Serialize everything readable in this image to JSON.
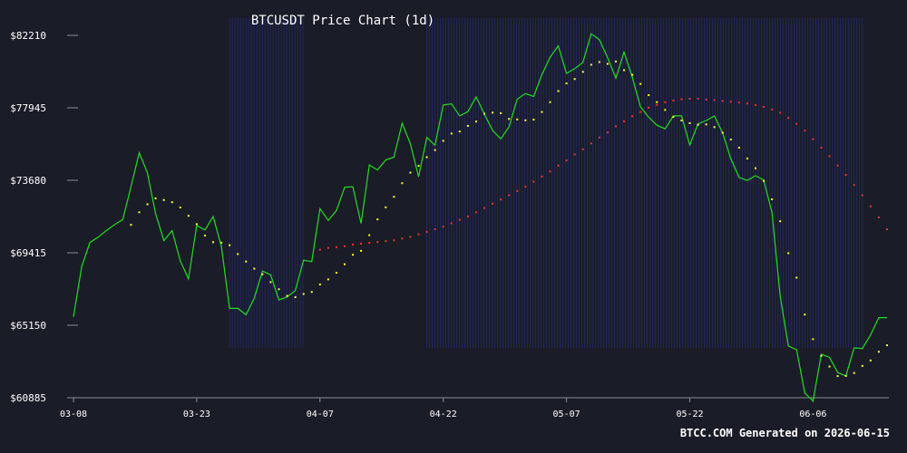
{
  "colors": {
    "background": "#1a1d27",
    "axis": "#8a8d96",
    "text": "#ffffff",
    "price_line": "#22dd22",
    "ma_short": "#ffff33",
    "ma_long": "#ee3333",
    "band": "#2a2f8a"
  },
  "chart_data": {
    "type": "line",
    "title": "BTCUSDT Price Chart (1d)",
    "footer": "BTCC.COM Generated on 2026-06-15",
    "xlabel": "",
    "ylabel": "",
    "x_start": "2026-03-08",
    "x_end": "2026-06-15",
    "ylim": [
      60885,
      82210
    ],
    "y_ticks": [
      "$82210",
      "$77945",
      "$73680",
      "$69415",
      "$65150",
      "$60885"
    ],
    "x_ticks": [
      {
        "label": "03-08",
        "day": 0
      },
      {
        "label": "03-23",
        "day": 15
      },
      {
        "label": "04-07",
        "day": 30
      },
      {
        "label": "04-22",
        "day": 45
      },
      {
        "label": "05-07",
        "day": 60
      },
      {
        "label": "05-22",
        "day": 75
      },
      {
        "label": "06-06",
        "day": 90
      }
    ],
    "band_ranges": [
      [
        19,
        28
      ],
      [
        43,
        96
      ]
    ],
    "series": [
      {
        "key": "price",
        "style": "line",
        "points": [
          [
            0,
            65650
          ],
          [
            1,
            68600
          ],
          [
            2,
            70020
          ],
          [
            3,
            70330
          ],
          [
            4,
            70720
          ],
          [
            5,
            71070
          ],
          [
            6,
            71370
          ],
          [
            7,
            73300
          ],
          [
            8,
            75300
          ],
          [
            9,
            74120
          ],
          [
            10,
            71700
          ],
          [
            11,
            70130
          ],
          [
            12,
            70720
          ],
          [
            13,
            68930
          ],
          [
            14,
            67880
          ],
          [
            15,
            71020
          ],
          [
            16,
            70760
          ],
          [
            17,
            71550
          ],
          [
            18,
            69790
          ],
          [
            19,
            66140
          ],
          [
            20,
            66140
          ],
          [
            21,
            65770
          ],
          [
            22,
            66740
          ],
          [
            23,
            68340
          ],
          [
            24,
            68120
          ],
          [
            25,
            66640
          ],
          [
            26,
            66820
          ],
          [
            27,
            67190
          ],
          [
            28,
            68980
          ],
          [
            29,
            68890
          ],
          [
            30,
            72010
          ],
          [
            31,
            71320
          ],
          [
            32,
            71900
          ],
          [
            33,
            73270
          ],
          [
            34,
            73300
          ],
          [
            35,
            71140
          ],
          [
            36,
            74580
          ],
          [
            37,
            74290
          ],
          [
            38,
            74880
          ],
          [
            39,
            75040
          ],
          [
            40,
            77040
          ],
          [
            41,
            75820
          ],
          [
            42,
            73890
          ],
          [
            43,
            76200
          ],
          [
            44,
            75740
          ],
          [
            45,
            78110
          ],
          [
            46,
            78180
          ],
          [
            47,
            77470
          ],
          [
            48,
            77720
          ],
          [
            49,
            78590
          ],
          [
            50,
            77580
          ],
          [
            51,
            76610
          ],
          [
            52,
            76120
          ],
          [
            53,
            76820
          ],
          [
            54,
            78450
          ],
          [
            55,
            78780
          ],
          [
            56,
            78610
          ],
          [
            57,
            79890
          ],
          [
            58,
            80920
          ],
          [
            59,
            81590
          ],
          [
            60,
            79970
          ],
          [
            61,
            80250
          ],
          [
            62,
            80620
          ],
          [
            63,
            82300
          ],
          [
            64,
            81960
          ],
          [
            65,
            80900
          ],
          [
            66,
            79690
          ],
          [
            67,
            81220
          ],
          [
            68,
            79750
          ],
          [
            69,
            78010
          ],
          [
            70,
            77390
          ],
          [
            71,
            76920
          ],
          [
            72,
            76710
          ],
          [
            73,
            77470
          ],
          [
            74,
            77470
          ],
          [
            75,
            75760
          ],
          [
            76,
            77000
          ],
          [
            77,
            77200
          ],
          [
            78,
            77460
          ],
          [
            79,
            76470
          ],
          [
            80,
            74940
          ],
          [
            81,
            73850
          ],
          [
            82,
            73670
          ],
          [
            83,
            73950
          ],
          [
            84,
            73700
          ],
          [
            85,
            71800
          ],
          [
            86,
            66860
          ],
          [
            87,
            63930
          ],
          [
            88,
            63710
          ],
          [
            89,
            61160
          ],
          [
            90,
            60690
          ],
          [
            91,
            63450
          ],
          [
            92,
            63270
          ],
          [
            93,
            62370
          ],
          [
            94,
            62160
          ],
          [
            95,
            63820
          ],
          [
            96,
            63780
          ],
          [
            97,
            64580
          ],
          [
            98,
            65600
          ],
          [
            99,
            65600
          ]
        ]
      },
      {
        "key": "ma_short",
        "style": "dots",
        "points": [
          [
            7,
            71060
          ],
          [
            8,
            71800
          ],
          [
            9,
            72270
          ],
          [
            10,
            72620
          ],
          [
            11,
            72520
          ],
          [
            12,
            72390
          ],
          [
            13,
            72080
          ],
          [
            14,
            71590
          ],
          [
            15,
            71100
          ],
          [
            16,
            70430
          ],
          [
            17,
            70040
          ],
          [
            18,
            70010
          ],
          [
            19,
            69860
          ],
          [
            20,
            69340
          ],
          [
            21,
            68900
          ],
          [
            22,
            68480
          ],
          [
            23,
            68150
          ],
          [
            24,
            67690
          ],
          [
            25,
            67270
          ],
          [
            26,
            66880
          ],
          [
            27,
            66800
          ],
          [
            28,
            66990
          ],
          [
            29,
            67110
          ],
          [
            30,
            67550
          ],
          [
            31,
            67850
          ],
          [
            32,
            68240
          ],
          [
            33,
            68740
          ],
          [
            34,
            69300
          ],
          [
            35,
            69530
          ],
          [
            36,
            70450
          ],
          [
            37,
            71380
          ],
          [
            38,
            72090
          ],
          [
            39,
            72710
          ],
          [
            40,
            73510
          ],
          [
            41,
            74130
          ],
          [
            42,
            74530
          ],
          [
            43,
            75040
          ],
          [
            44,
            75460
          ],
          [
            45,
            76000
          ],
          [
            46,
            76430
          ],
          [
            47,
            76550
          ],
          [
            48,
            76880
          ],
          [
            49,
            77140
          ],
          [
            50,
            77600
          ],
          [
            51,
            77660
          ],
          [
            52,
            77630
          ],
          [
            53,
            77290
          ],
          [
            54,
            77260
          ],
          [
            55,
            77210
          ],
          [
            56,
            77250
          ],
          [
            57,
            77700
          ],
          [
            58,
            78280
          ],
          [
            59,
            78930
          ],
          [
            60,
            79380
          ],
          [
            61,
            79640
          ],
          [
            62,
            80060
          ],
          [
            63,
            80480
          ],
          [
            64,
            80640
          ],
          [
            65,
            80530
          ],
          [
            66,
            80670
          ],
          [
            67,
            80160
          ],
          [
            68,
            79890
          ],
          [
            69,
            79350
          ],
          [
            70,
            78690
          ],
          [
            71,
            78280
          ],
          [
            72,
            77820
          ],
          [
            73,
            77410
          ],
          [
            74,
            77200
          ],
          [
            75,
            77040
          ],
          [
            76,
            76950
          ],
          [
            77,
            76970
          ],
          [
            78,
            76810
          ],
          [
            79,
            76480
          ],
          [
            80,
            76080
          ],
          [
            81,
            75600
          ],
          [
            82,
            74960
          ],
          [
            83,
            74390
          ],
          [
            84,
            73640
          ],
          [
            85,
            72560
          ],
          [
            86,
            71270
          ],
          [
            87,
            69390
          ],
          [
            88,
            67950
          ],
          [
            89,
            65780
          ],
          [
            90,
            64330
          ],
          [
            91,
            63350
          ],
          [
            92,
            62720
          ],
          [
            93,
            62160
          ],
          [
            94,
            62170
          ],
          [
            95,
            62340
          ],
          [
            96,
            62760
          ],
          [
            97,
            63080
          ],
          [
            98,
            63590
          ],
          [
            99,
            63970
          ]
        ]
      },
      {
        "key": "ma_long",
        "style": "dots",
        "points": [
          [
            30,
            69600
          ],
          [
            31,
            69700
          ],
          [
            32,
            69750
          ],
          [
            33,
            69800
          ],
          [
            34,
            69900
          ],
          [
            35,
            69950
          ],
          [
            36,
            70000
          ],
          [
            37,
            70050
          ],
          [
            38,
            70100
          ],
          [
            39,
            70150
          ],
          [
            40,
            70250
          ],
          [
            41,
            70350
          ],
          [
            42,
            70500
          ],
          [
            43,
            70650
          ],
          [
            44,
            70800
          ],
          [
            45,
            70950
          ],
          [
            46,
            71150
          ],
          [
            47,
            71350
          ],
          [
            48,
            71550
          ],
          [
            49,
            71800
          ],
          [
            50,
            72050
          ],
          [
            51,
            72300
          ],
          [
            52,
            72550
          ],
          [
            53,
            72800
          ],
          [
            54,
            73050
          ],
          [
            55,
            73300
          ],
          [
            56,
            73600
          ],
          [
            57,
            73900
          ],
          [
            58,
            74200
          ],
          [
            59,
            74550
          ],
          [
            60,
            74850
          ],
          [
            61,
            75200
          ],
          [
            62,
            75500
          ],
          [
            63,
            75850
          ],
          [
            64,
            76200
          ],
          [
            65,
            76500
          ],
          [
            66,
            76850
          ],
          [
            67,
            77150
          ],
          [
            68,
            77450
          ],
          [
            69,
            77700
          ],
          [
            70,
            77950
          ],
          [
            71,
            78120
          ],
          [
            72,
            78280
          ],
          [
            73,
            78370
          ],
          [
            74,
            78450
          ],
          [
            75,
            78480
          ],
          [
            76,
            78480
          ],
          [
            77,
            78430
          ],
          [
            78,
            78400
          ],
          [
            79,
            78350
          ],
          [
            80,
            78300
          ],
          [
            81,
            78250
          ],
          [
            82,
            78200
          ],
          [
            83,
            78100
          ],
          [
            84,
            78000
          ],
          [
            85,
            77850
          ],
          [
            86,
            77650
          ],
          [
            87,
            77350
          ],
          [
            88,
            77000
          ],
          [
            89,
            76600
          ],
          [
            90,
            76100
          ],
          [
            91,
            75600
          ],
          [
            92,
            75100
          ],
          [
            93,
            74550
          ],
          [
            94,
            74000
          ],
          [
            95,
            73400
          ],
          [
            96,
            72800
          ],
          [
            97,
            72150
          ],
          [
            98,
            71500
          ],
          [
            99,
            70800
          ]
        ]
      }
    ]
  }
}
